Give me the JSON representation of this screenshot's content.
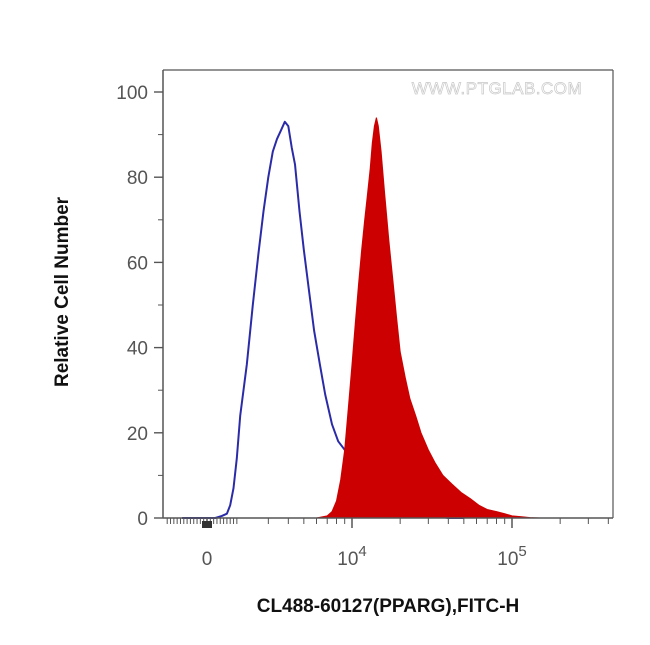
{
  "watermark": "WWW.PTGLAB.COM",
  "chart_data": {
    "type": "area",
    "xlabel": "CL488-60127(PPARG),FITC-H",
    "ylabel": "Relative Cell Number",
    "x_scale": "biexponential",
    "xlim": [
      -2500,
      400000
    ],
    "ylim": [
      0,
      100
    ],
    "x_tick_labels": [
      {
        "value": 0,
        "base": "0",
        "exp": ""
      },
      {
        "value": 10000,
        "base": "10",
        "exp": "4"
      },
      {
        "value": 100000,
        "base": "10",
        "exp": "5"
      }
    ],
    "y_ticks": [
      0,
      20,
      40,
      60,
      80,
      100
    ],
    "grid": false,
    "legend": "none",
    "colors": {
      "control": "#2b2ba8",
      "sample": "#cc0000",
      "axis": "#555555"
    },
    "series": [
      {
        "style": "outline",
        "color": "#2b2ba8",
        "x": [
          -1500,
          -500,
          0,
          500,
          900,
          1200,
          1400,
          1600,
          1800,
          2000,
          2200,
          2400,
          2600,
          2800,
          3000,
          3200,
          3400,
          3600,
          3800,
          4000,
          4200,
          4400,
          4700,
          5000,
          5400,
          5800,
          6300,
          6800,
          7500,
          8200,
          9000,
          10000,
          11000,
          12000,
          13000,
          14000,
          15500,
          17000,
          19000,
          21000,
          24000,
          28000,
          33000,
          40000,
          50000
        ],
        "y": [
          0,
          0,
          0,
          0,
          0.5,
          1,
          3,
          7,
          14,
          24,
          36,
          50,
          62,
          72,
          80,
          86,
          89,
          91,
          93,
          92,
          87,
          83,
          72,
          63,
          53,
          44,
          36,
          29,
          22,
          18,
          16,
          14,
          13,
          13,
          12,
          12,
          11,
          9,
          6,
          4,
          2,
          1,
          0.5,
          0,
          0
        ]
      },
      {
        "style": "filled",
        "color": "#cc0000",
        "x": [
          4000,
          6000,
          7000,
          7500,
          8000,
          8500,
          9000,
          9500,
          10000,
          10500,
          11000,
          11500,
          12000,
          12500,
          13000,
          13400,
          13800,
          14200,
          14600,
          15200,
          16000,
          17000,
          18000,
          19000,
          20000,
          21500,
          23000,
          25000,
          27000,
          30000,
          33000,
          37000,
          42000,
          48000,
          55000,
          62000,
          70000,
          80000,
          90000,
          100000,
          115000,
          130000,
          150000
        ],
        "y": [
          0,
          0,
          0.5,
          1.5,
          4,
          9,
          16,
          26,
          36,
          46,
          55,
          63,
          70,
          76,
          82,
          88,
          92,
          94,
          92,
          86,
          76,
          65,
          56,
          47,
          39,
          33,
          28,
          24,
          20,
          16,
          13,
          10,
          8,
          6,
          4.5,
          3,
          2,
          1.5,
          1,
          0.5,
          0.3,
          0.1,
          0
        ]
      }
    ]
  }
}
